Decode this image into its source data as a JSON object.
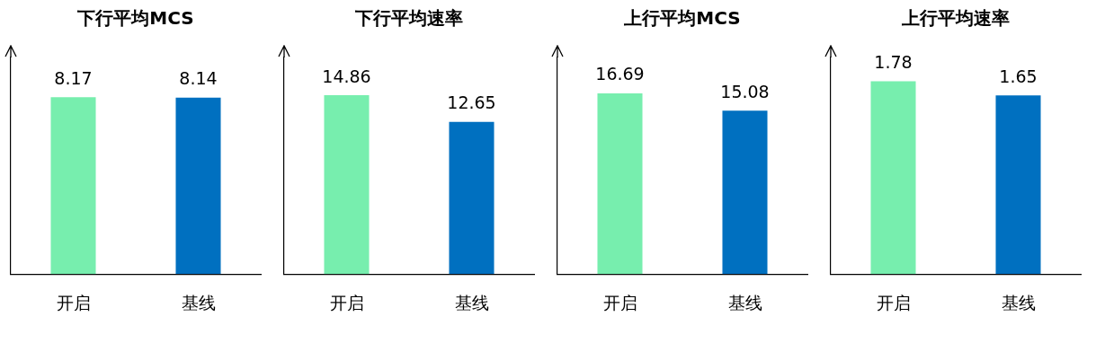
{
  "chart_data": [
    {
      "type": "bar",
      "title": "下行平均MCS",
      "categories": [
        "开启",
        "基线"
      ],
      "values": [
        8.17,
        8.14
      ],
      "colors": [
        "#77eeae",
        "#0070c0"
      ],
      "data_labels": true,
      "grid": false,
      "legend": false,
      "tick_labels": "x"
    },
    {
      "type": "bar",
      "title": "下行平均速率",
      "categories": [
        "开启",
        "基线"
      ],
      "values": [
        14.86,
        12.65
      ],
      "colors": [
        "#77eeae",
        "#0070c0"
      ],
      "data_labels": true,
      "grid": false,
      "legend": false,
      "tick_labels": "x"
    },
    {
      "type": "bar",
      "title": "上行平均MCS",
      "categories": [
        "开启",
        "基线"
      ],
      "values": [
        16.69,
        15.08
      ],
      "colors": [
        "#77eeae",
        "#0070c0"
      ],
      "data_labels": true,
      "grid": false,
      "legend": false,
      "tick_labels": "x"
    },
    {
      "type": "bar",
      "title": "上行平均速率",
      "categories": [
        "开启",
        "基线"
      ],
      "values": [
        1.78,
        1.65
      ],
      "colors": [
        "#77eeae",
        "#0070c0"
      ],
      "data_labels": true,
      "grid": false,
      "legend": false,
      "tick_labels": "x"
    }
  ]
}
